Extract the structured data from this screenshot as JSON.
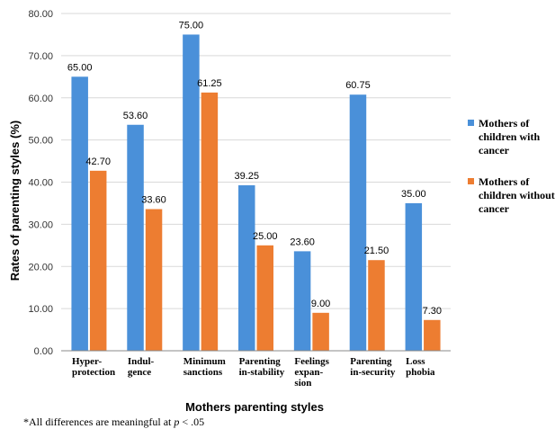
{
  "chart_data": {
    "type": "bar",
    "categories": [
      [
        "Hyper-",
        "protection"
      ],
      [
        "Indul-",
        "gence"
      ],
      [
        "Minimum",
        "sanctions"
      ],
      [
        "Parenting",
        "in-stability"
      ],
      [
        "Feelings",
        "expan-",
        "sion"
      ],
      [
        "Parenting",
        "in-security"
      ],
      [
        "Loss",
        "phobia"
      ]
    ],
    "series": [
      {
        "name": [
          "Mothers of",
          "children with",
          "cancer"
        ],
        "color": "#4a90d9",
        "values": [
          65.0,
          53.6,
          75.0,
          39.25,
          23.6,
          60.75,
          35.0
        ],
        "labels": [
          "65.00",
          "53.60",
          "75.00",
          "39.25",
          "23.60",
          "60.75",
          "35.00"
        ]
      },
      {
        "name": [
          "Mothers of",
          "children without",
          "cancer"
        ],
        "color": "#ed7d31",
        "values": [
          42.7,
          33.6,
          61.25,
          25.0,
          9.0,
          21.5,
          7.3
        ],
        "labels": [
          "42.70",
          "33.60",
          "61.25",
          "25.00",
          "9.00",
          "21.50",
          "7.30"
        ]
      }
    ],
    "ylabel": "Rates of parenting styles (%)",
    "xlabel": "Mothers parenting styles",
    "ylim": [
      0,
      80
    ],
    "yticks": [
      "0.00",
      "10.00",
      "20.00",
      "30.00",
      "40.00",
      "50.00",
      "60.00",
      "70.00",
      "80.00"
    ],
    "grid": true,
    "legend": "right"
  },
  "footnote": {
    "prefix": "*All differences are meaningful at ",
    "p": "p",
    "suffix": " <  .05"
  }
}
